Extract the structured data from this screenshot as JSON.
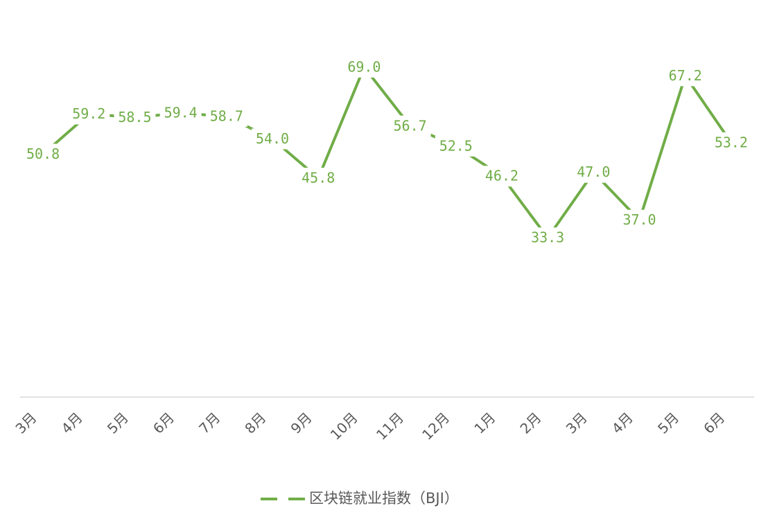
{
  "chart_data": {
    "type": "line",
    "categories": [
      "3月",
      "4月",
      "5月",
      "6月",
      "7月",
      "8月",
      "9月",
      "10月",
      "11月",
      "12月",
      "1月",
      "2月",
      "3月",
      "4月",
      "5月",
      "6月"
    ],
    "series": [
      {
        "name": "区块链就业指数（BJI）",
        "color": "#70ad47",
        "values": [
          50.8,
          59.2,
          58.5,
          59.4,
          58.7,
          54.0,
          45.8,
          69.0,
          56.7,
          52.5,
          46.2,
          33.3,
          47.0,
          37.0,
          67.2,
          53.2
        ],
        "value_labels": [
          "50.8",
          "59.2",
          "58.5",
          "59.4",
          "58.7",
          "54.0",
          "45.8",
          "69.0",
          "56.7",
          "52.5",
          "46.2",
          "33.3",
          "47.0",
          "37.0",
          "67.2",
          "53.2"
        ]
      }
    ],
    "ylim": [
      0,
      80
    ],
    "legend": "bottom"
  }
}
